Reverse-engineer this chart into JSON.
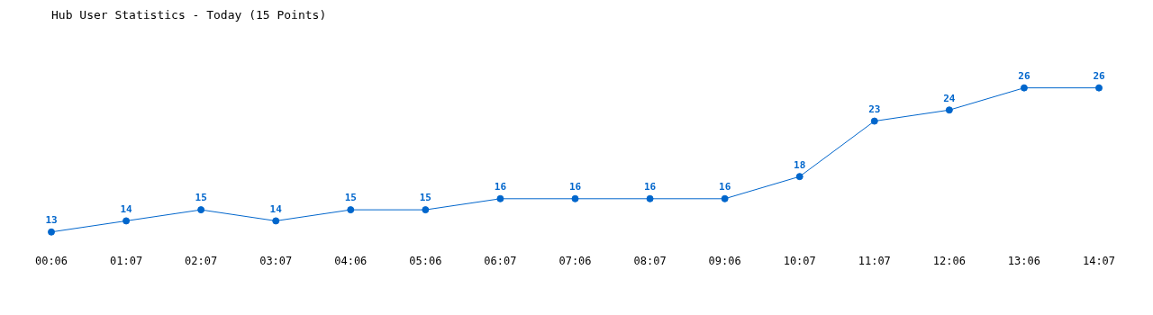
{
  "chart_data": {
    "type": "line",
    "title": "Hub User Statistics - Today (15 Points)",
    "categories": [
      "00:06",
      "01:07",
      "02:07",
      "03:07",
      "04:06",
      "05:06",
      "06:07",
      "07:06",
      "08:07",
      "09:06",
      "10:07",
      "11:07",
      "12:06",
      "13:06",
      "14:07"
    ],
    "series": [
      {
        "color": "#0066cc",
        "values": [
          13,
          14,
          15,
          14,
          15,
          15,
          16,
          16,
          16,
          16,
          18,
          23,
          24,
          26,
          26
        ]
      }
    ],
    "data_labels": true,
    "marker": "circle",
    "line_style": "solid",
    "grid": false,
    "legend": false,
    "tick_labels": "x"
  }
}
